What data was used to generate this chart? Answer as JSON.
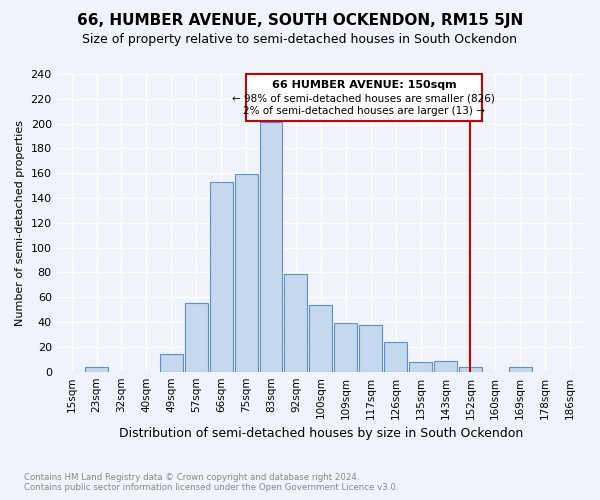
{
  "title": "66, HUMBER AVENUE, SOUTH OCKENDON, RM15 5JN",
  "subtitle": "Size of property relative to semi-detached houses in South Ockendon",
  "xlabel": "Distribution of semi-detached houses by size in South Ockendon",
  "ylabel": "Number of semi-detached properties",
  "footnote": "Contains HM Land Registry data © Crown copyright and database right 2024.\nContains public sector information licensed under the Open Government Licence v3.0.",
  "categories": [
    "15sqm",
    "23sqm",
    "32sqm",
    "40sqm",
    "49sqm",
    "57sqm",
    "66sqm",
    "75sqm",
    "83sqm",
    "92sqm",
    "100sqm",
    "109sqm",
    "117sqm",
    "126sqm",
    "135sqm",
    "143sqm",
    "152sqm",
    "160sqm",
    "169sqm",
    "178sqm",
    "186sqm"
  ],
  "values": [
    0,
    4,
    0,
    0,
    14,
    55,
    153,
    159,
    201,
    79,
    54,
    39,
    38,
    24,
    8,
    9,
    4,
    0,
    4,
    0,
    0
  ],
  "bar_color": "#c5d8ee",
  "bar_edge_color": "#5b8fc7",
  "marker_color": "#cc0000",
  "marker_label": "66 HUMBER AVENUE: 150sqm",
  "annotation_line1": "← 98% of semi-detached houses are smaller (826)",
  "annotation_line2": "2% of semi-detached houses are larger (13) →",
  "ylim": [
    0,
    240
  ],
  "yticks": [
    0,
    20,
    40,
    60,
    80,
    100,
    120,
    140,
    160,
    180,
    200,
    220,
    240
  ],
  "background_color": "#f0f4fa",
  "grid_color": "#ffffff",
  "title_fontsize": 11,
  "subtitle_fontsize": 9
}
